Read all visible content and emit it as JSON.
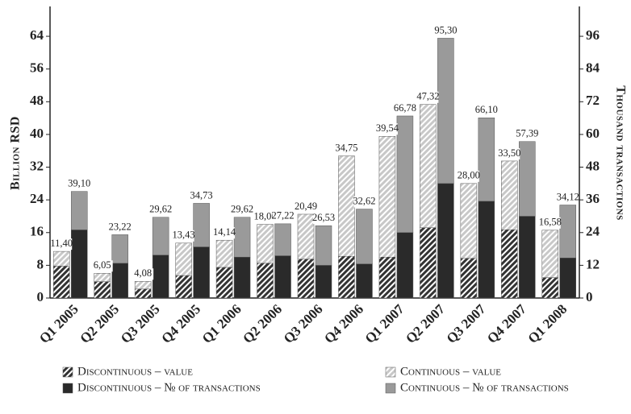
{
  "chart_data": {
    "type": "bar",
    "stacked": true,
    "y_label": "Billion RSD",
    "y2_label": "Thousand transactions",
    "categories": [
      "Q1 2005",
      "Q2 2005",
      "Q3 2005",
      "Q4 2005",
      "Q1 2006",
      "Q2 2006",
      "Q3 2006",
      "Q4 2006",
      "Q1 2007",
      "Q2 2007",
      "Q3 2007",
      "Q4 2007",
      "Q1 2008"
    ],
    "ylim": [
      0,
      71.3
    ],
    "yticks": [
      0,
      8,
      16,
      24,
      32,
      40,
      48,
      56,
      64
    ],
    "y2lim": [
      0,
      106.95
    ],
    "y2ticks": [
      0,
      12,
      24,
      36,
      48,
      60,
      72,
      84,
      96
    ],
    "series": [
      {
        "name": "Discontinuous – value",
        "color": "#333333",
        "hatch": true,
        "stack": "value",
        "values": [
          7.8,
          4,
          2.2,
          5.5,
          7.5,
          8.5,
          9.5,
          10.2,
          10,
          17.2,
          9.7,
          16.7,
          5
        ]
      },
      {
        "name": "Continuous – value",
        "color": "#c8c8c8",
        "hatch": true,
        "stack": "value",
        "values": [
          3.6,
          2.05,
          1.88,
          7.93,
          6.64,
          9.5,
          10.99,
          24.55,
          29.54,
          30.12,
          18.3,
          16.8,
          11.58
        ]
      },
      {
        "name": "Discontinuous – № of transactions",
        "color": "#2a2a2a",
        "hatch": false,
        "stack": "transactions",
        "axis": "y2",
        "values": [
          25,
          12.75,
          15.75,
          18.75,
          15,
          15.5,
          12,
          12.5,
          24,
          42,
          35.5,
          30,
          14.7
        ]
      },
      {
        "name": "Continuous – № of transactions",
        "color": "#9a9a9a",
        "hatch": false,
        "stack": "transactions",
        "axis": "y2",
        "values": [
          14.1,
          10.47,
          13.87,
          15.98,
          14.62,
          11.72,
          14.53,
          20.12,
          42.78,
          53.3,
          30.6,
          27.39,
          19.42
        ]
      }
    ],
    "value_totals": {
      "values": [
        11.4,
        6.05,
        4.08,
        13.43,
        14.14,
        18,
        20.49,
        34.75,
        39.54,
        47.32,
        28,
        33.5,
        16.58
      ],
      "value_labels": [
        "11,40",
        "6,05",
        "4,08",
        "13,43",
        "14,14",
        "18,00",
        "20,49",
        "34,75",
        "39,54",
        "47,32",
        "28,00",
        "33,50",
        "16,58"
      ]
    },
    "transaction_totals": {
      "axis": "y2",
      "values": [
        39.1,
        23.22,
        29.62,
        34.73,
        29.62,
        27.22,
        26.53,
        32.62,
        66.78,
        95.3,
        66.1,
        57.39,
        34.12
      ],
      "value_labels": [
        "39,10",
        "23,22",
        "29,62",
        "34,73",
        "29,62",
        "27,22",
        "26,53",
        "32,62",
        "66,78",
        "95,30",
        "66,10",
        "57,39",
        "34,12"
      ]
    }
  }
}
